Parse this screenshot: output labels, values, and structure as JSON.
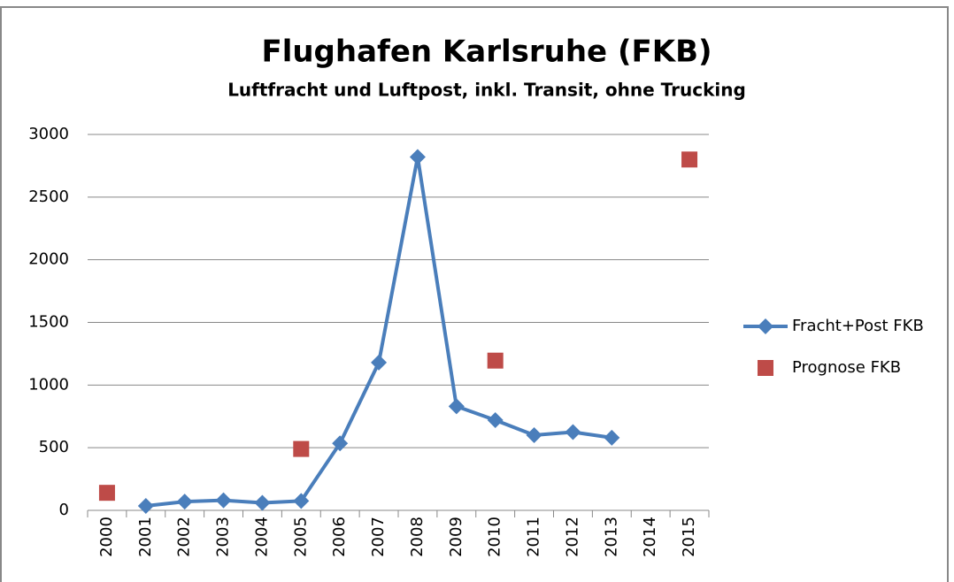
{
  "chart_data": {
    "type": "line",
    "title": "Flughafen Karlsruhe (FKB)",
    "subtitle": "Luftfracht und Luftpost, inkl. Transit, ohne Trucking",
    "categories": [
      "2000",
      "2001",
      "2002",
      "2003",
      "2004",
      "2005",
      "2006",
      "2007",
      "2008",
      "2009",
      "2010",
      "2011",
      "2012",
      "2013",
      "2014",
      "2015"
    ],
    "series": [
      {
        "name": "Fracht+Post FKB",
        "color": "#4a7ebb",
        "marker": "diamond",
        "line": true,
        "values": [
          null,
          35,
          70,
          80,
          60,
          75,
          535,
          1180,
          2820,
          830,
          720,
          600,
          625,
          580,
          null,
          null
        ]
      },
      {
        "name": "Prognose FKB",
        "color": "#be4b48",
        "marker": "square",
        "line": false,
        "values": [
          140,
          null,
          null,
          null,
          null,
          490,
          null,
          null,
          null,
          null,
          1195,
          null,
          null,
          null,
          null,
          2800
        ]
      }
    ],
    "ylim": [
      0,
      3000
    ],
    "yticks": [
      0,
      500,
      1000,
      1500,
      2000,
      2500,
      3000
    ],
    "grid": true,
    "legend": "right"
  }
}
